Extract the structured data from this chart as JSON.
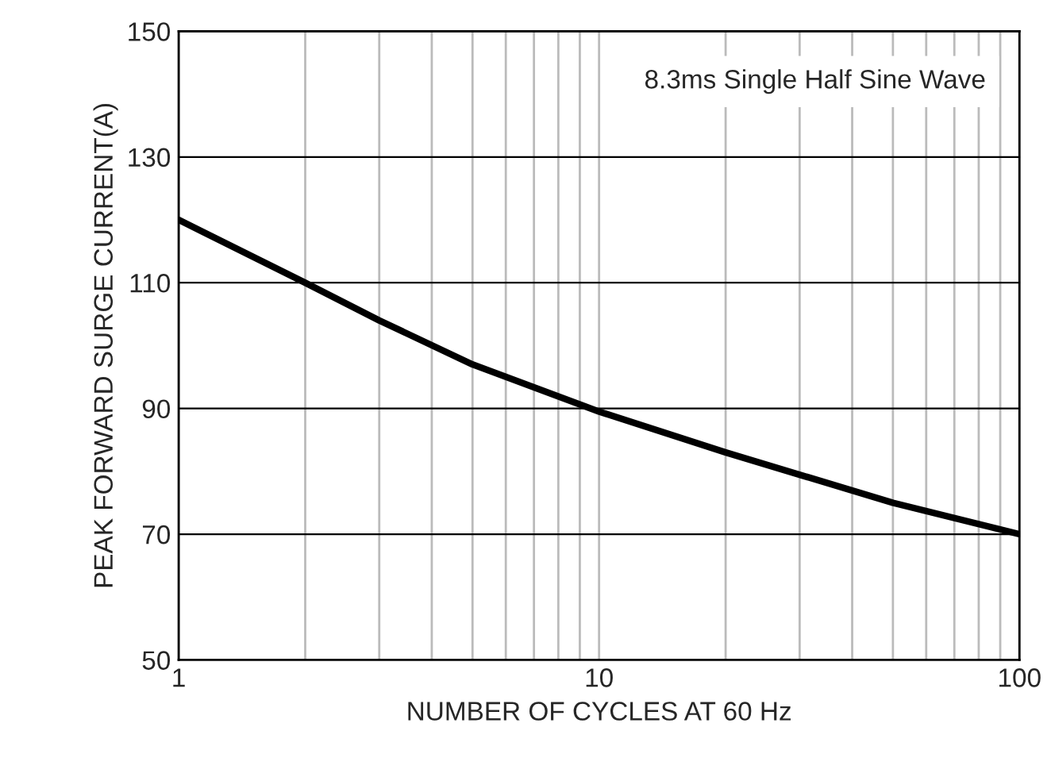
{
  "chart_data": {
    "type": "line",
    "xlabel": "NUMBER OF CYCLES AT 60 Hz",
    "ylabel": "PEAK FORWARD SURGE CURRENT(A)",
    "x": [
      1,
      2,
      3,
      5,
      10,
      20,
      50,
      100
    ],
    "series": [
      {
        "color": "#000000",
        "values": [
          120,
          110,
          104,
          97,
          89.5,
          83,
          75,
          70
        ]
      }
    ],
    "log": "x",
    "xlim": [
      1,
      100
    ],
    "ylim": [
      50,
      150
    ],
    "xticks": [
      1,
      {
        "value": 2,
        "label": null
      },
      {
        "value": 3,
        "label": null
      },
      {
        "value": 4,
        "label": null
      },
      {
        "value": 5,
        "label": null
      },
      {
        "value": 6,
        "label": null
      },
      {
        "value": 7,
        "label": null
      },
      {
        "value": 8,
        "label": null
      },
      {
        "value": 9,
        "label": null
      },
      10,
      {
        "value": 20,
        "label": null
      },
      {
        "value": 30,
        "label": null
      },
      {
        "value": 40,
        "label": null
      },
      {
        "value": 50,
        "label": null
      },
      {
        "value": 60,
        "label": null
      },
      {
        "value": 70,
        "label": null
      },
      {
        "value": 80,
        "label": null
      },
      {
        "value": 90,
        "label": null
      },
      100
    ],
    "yticks": [
      50,
      70,
      90,
      110,
      130,
      150
    ],
    "grid": true,
    "marker": "none",
    "line_style": "solid",
    "annotations": [
      "8.3ms Single Half Sine Wave"
    ]
  }
}
